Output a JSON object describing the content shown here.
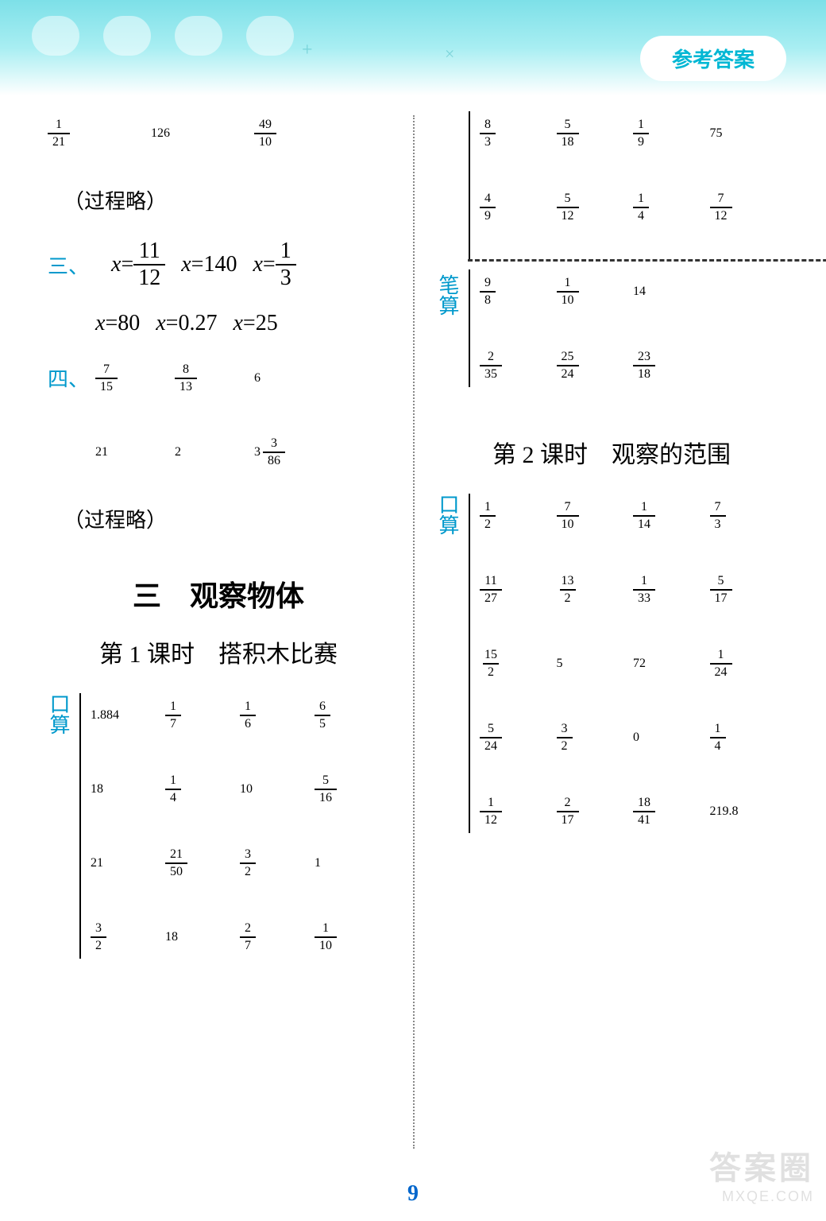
{
  "header": {
    "badge": "参考答案"
  },
  "pagenum": "9",
  "watermark": {
    "line1": "答案圈",
    "line2": "MXQE.COM"
  },
  "left": {
    "top_row": [
      {
        "n": "1",
        "d": "21"
      },
      "126",
      {
        "n": "49",
        "d": "10"
      }
    ],
    "note1": "（过程略）",
    "marker3": "三、",
    "eqs_line1": [
      {
        "lhs": "x=",
        "n": "11",
        "d": "12"
      },
      {
        "lhs": "x=",
        "v": "140"
      },
      {
        "lhs": "x=",
        "n": "1",
        "d": "3"
      }
    ],
    "eqs_line2": [
      {
        "lhs": "x=",
        "v": "80"
      },
      {
        "lhs": "x=",
        "v": "0.27"
      },
      {
        "lhs": "x=",
        "v": "25"
      }
    ],
    "marker4": "四、",
    "row4a": [
      {
        "n": "7",
        "d": "15"
      },
      {
        "n": "8",
        "d": "13"
      },
      "6"
    ],
    "row4b": [
      "21",
      "2",
      {
        "whole": "3",
        "n": "3",
        "d": "86"
      }
    ],
    "note2": "（过程略）",
    "section_title": "三　观察物体",
    "lesson_title": "第 1 课时　搭积木比赛",
    "label_kousuan": "口算",
    "table1": [
      [
        "1.884",
        {
          "n": "1",
          "d": "7"
        },
        {
          "n": "1",
          "d": "6"
        },
        {
          "n": "6",
          "d": "5"
        }
      ],
      [
        "18",
        {
          "n": "1",
          "d": "4"
        },
        "10",
        {
          "n": "5",
          "d": "16"
        }
      ],
      [
        "21",
        {
          "n": "21",
          "d": "50"
        },
        {
          "n": "3",
          "d": "2"
        },
        "1"
      ],
      [
        {
          "n": "3",
          "d": "2"
        },
        "18",
        {
          "n": "2",
          "d": "7"
        },
        {
          "n": "1",
          "d": "10"
        }
      ]
    ]
  },
  "right": {
    "label_bisuan": "笔算",
    "cont_rows": [
      [
        {
          "n": "8",
          "d": "3"
        },
        {
          "n": "5",
          "d": "18"
        },
        {
          "n": "1",
          "d": "9"
        },
        "75"
      ],
      [
        {
          "n": "4",
          "d": "9"
        },
        {
          "n": "5",
          "d": "12"
        },
        {
          "n": "1",
          "d": "4"
        },
        {
          "n": "7",
          "d": "12"
        }
      ]
    ],
    "bisuan_rows": [
      [
        {
          "n": "9",
          "d": "8"
        },
        {
          "n": "1",
          "d": "10"
        },
        "14",
        ""
      ],
      [
        {
          "n": "2",
          "d": "35"
        },
        {
          "n": "25",
          "d": "24"
        },
        {
          "n": "23",
          "d": "18"
        },
        ""
      ]
    ],
    "lesson_title": "第 2 课时　观察的范围",
    "label_kousuan": "口算",
    "table2": [
      [
        {
          "n": "1",
          "d": "2"
        },
        {
          "n": "7",
          "d": "10"
        },
        {
          "n": "1",
          "d": "14"
        },
        {
          "n": "7",
          "d": "3"
        }
      ],
      [
        {
          "n": "11",
          "d": "27"
        },
        {
          "n": "13",
          "d": "2"
        },
        {
          "n": "1",
          "d": "33"
        },
        {
          "n": "5",
          "d": "17"
        }
      ],
      [
        {
          "n": "15",
          "d": "2"
        },
        "5",
        "72",
        {
          "n": "1",
          "d": "24"
        }
      ],
      [
        {
          "n": "5",
          "d": "24"
        },
        {
          "n": "3",
          "d": "2"
        },
        "0",
        {
          "n": "1",
          "d": "4"
        }
      ],
      [
        {
          "n": "1",
          "d": "12"
        },
        {
          "n": "2",
          "d": "17"
        },
        {
          "n": "18",
          "d": "41"
        },
        "219.8"
      ]
    ]
  }
}
